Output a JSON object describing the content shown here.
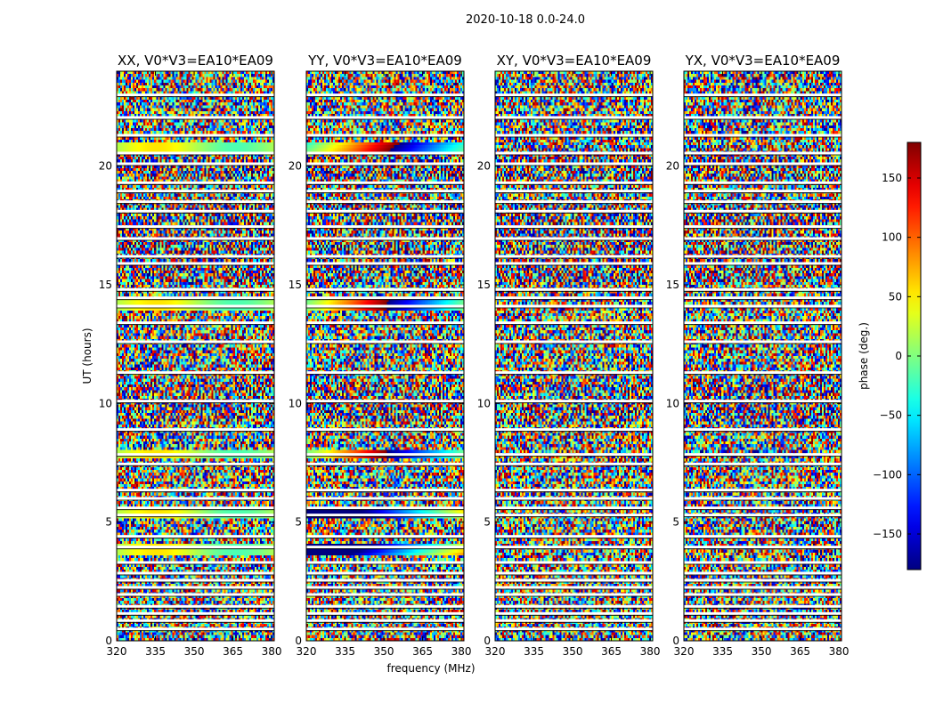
{
  "chart_data": {
    "type": "heatmap",
    "suptitle": "2020-10-18 0.0-24.0",
    "panels": [
      {
        "title": "XX, V0*V3=EA10*EA09"
      },
      {
        "title": "YY, V0*V3=EA10*EA09"
      },
      {
        "title": "XY, V0*V3=EA10*EA09"
      },
      {
        "title": "YX, V0*V3=EA10*EA09"
      }
    ],
    "xlabel": "frequency (MHz)",
    "ylabel": "UT (hours)",
    "xlim": [
      320,
      381
    ],
    "ylim": [
      0,
      24
    ],
    "xticks": [
      320,
      335,
      350,
      365,
      380
    ],
    "yticks": [
      0,
      5,
      10,
      15,
      20
    ],
    "colorbar": {
      "label": "phase (deg.)",
      "range": [
        -180,
        180
      ],
      "ticks": [
        150,
        100,
        50,
        0,
        -50,
        -100,
        -150
      ],
      "tick_labels": [
        "150",
        "100",
        "50",
        "0",
        "−50",
        "−100",
        "−150"
      ],
      "colormap": "jet"
    },
    "flagged_ut_hours": [
      0.5,
      0.85,
      1.15,
      1.45,
      1.95,
      2.25,
      2.55,
      2.85,
      3.3,
      3.95,
      4.4,
      5.3,
      5.6,
      6.0,
      6.35,
      7.45,
      7.85,
      8.9,
      10.1,
      11.3,
      12.6,
      13.4,
      14.1,
      14.45,
      14.8,
      15.9,
      16.2,
      16.95,
      17.45,
      18.1,
      18.5,
      18.95,
      19.3,
      20.1,
      20.55,
      21.3,
      22.05,
      23.0
    ],
    "coherent_ut_hours": [
      3.9,
      5.45,
      7.9,
      14.2,
      20.8
    ]
  }
}
